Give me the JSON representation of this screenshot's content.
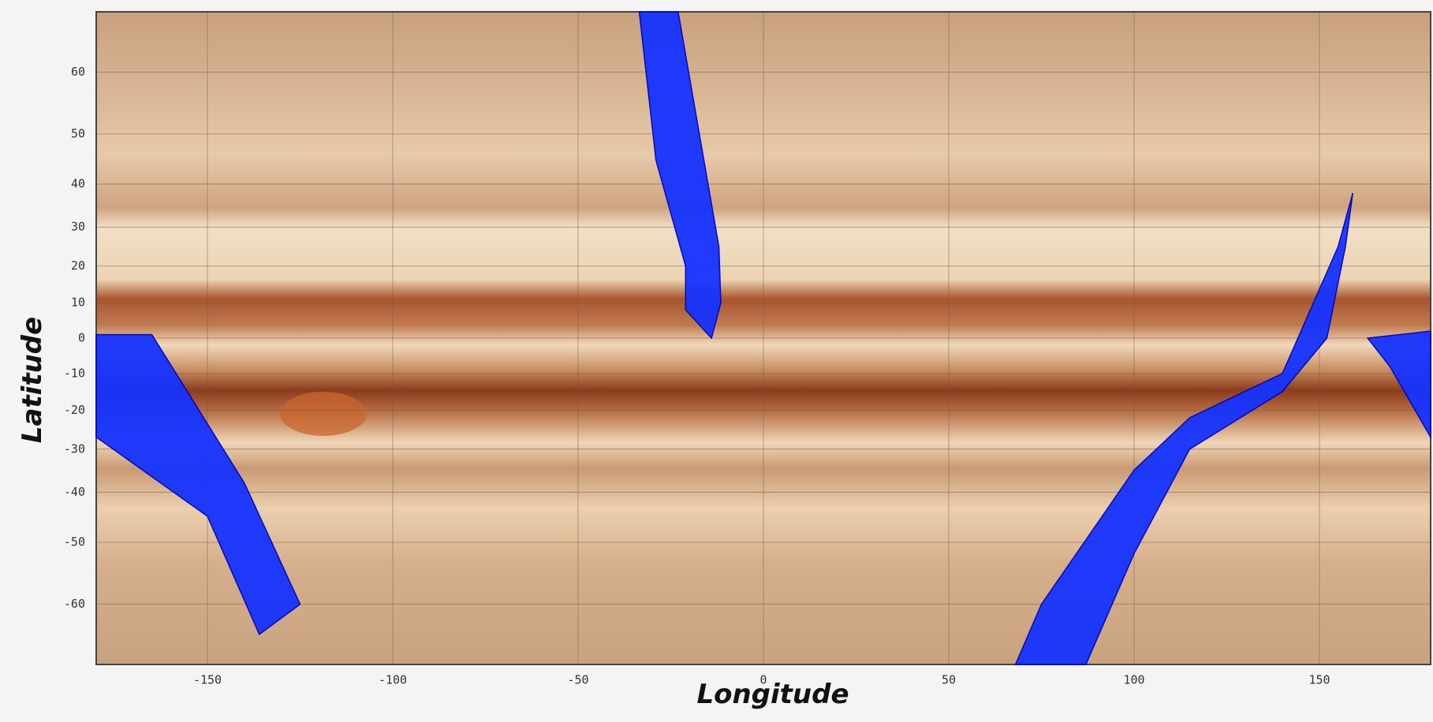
{
  "chart_data": {
    "type": "polygon",
    "x_label": "Longitude",
    "y_label": "Latitude",
    "xlim": [
      -180,
      180
    ],
    "xticks": [
      -150,
      -100,
      -50,
      0,
      50,
      100,
      150
    ],
    "ylim": [
      -67.5,
      67.5
    ],
    "yticks": [
      -60,
      -50,
      -40,
      -30,
      -20,
      -10,
      0,
      10,
      20,
      30,
      40,
      50,
      60
    ],
    "yscale": "mercator",
    "grid": true,
    "series": [
      {
        "color": "#1533ff",
        "x": [
          -33.5,
          -23,
          -12,
          -11.5,
          -14,
          -21,
          -21,
          -29
        ],
        "y": [
          67.5,
          67.5,
          25,
          10,
          0,
          8,
          20,
          45
        ]
      },
      {
        "color": "#1533ff",
        "x": [
          -180,
          -165,
          -140,
          -125,
          -136,
          -150,
          -180
        ],
        "y": [
          1,
          1,
          -38,
          -60,
          -64,
          -45,
          -27
        ]
      },
      {
        "color": "#1533ff",
        "x": [
          159,
          155,
          140,
          115,
          100,
          75,
          68,
          87,
          100,
          115,
          140,
          152,
          157
        ],
        "y": [
          38,
          25,
          -10,
          -22,
          -35,
          -60,
          -67.5,
          -67.5,
          -52,
          -30,
          -15,
          0,
          25
        ]
      },
      {
        "color": "#1533ff",
        "x": [
          163,
          180,
          180,
          169
        ],
        "y": [
          0,
          2,
          -27,
          -8
        ]
      }
    ]
  }
}
